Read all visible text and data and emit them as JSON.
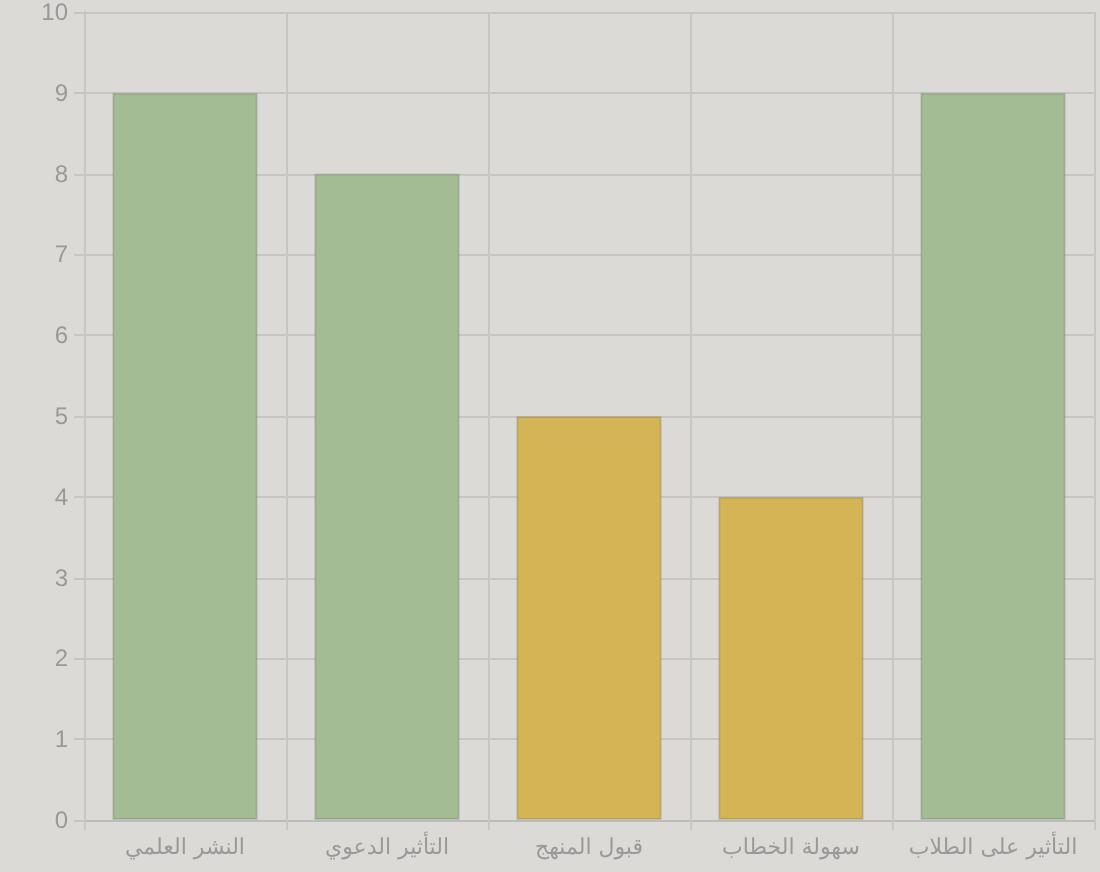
{
  "chart_data": {
    "type": "bar",
    "categories": [
      "النشر العلمي",
      "التأثير الدعوي",
      "قبول المنهج",
      "سهولة الخطاب",
      "التأثير على الطلاب"
    ],
    "values": [
      9,
      8,
      5,
      4,
      9
    ],
    "colors": [
      "#a3bc94",
      "#a3bc94",
      "#d4b455",
      "#d4b455",
      "#a3bc94"
    ],
    "ylim": [
      0,
      10
    ],
    "yticks": [
      0,
      1,
      2,
      3,
      4,
      5,
      6,
      7,
      8,
      9,
      10
    ],
    "grid": true
  }
}
